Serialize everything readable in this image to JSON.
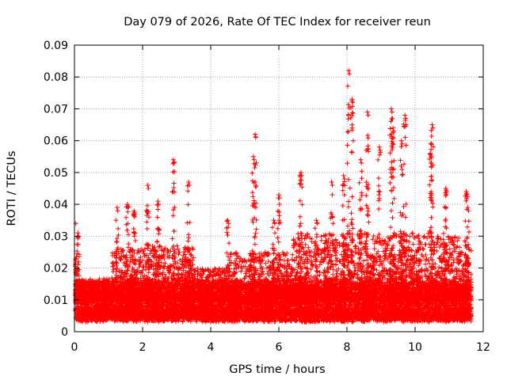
{
  "chart_data": {
    "type": "scatter",
    "title": "Day 079 of 2026, Rate Of TEC Index for receiver reun",
    "xlabel": "GPS time / hours",
    "ylabel": "ROTI / TECUs",
    "xlim": [
      0,
      12
    ],
    "ylim": [
      0,
      0.09
    ],
    "x_ticks": [
      0,
      2,
      4,
      6,
      8,
      10,
      12
    ],
    "x_tick_labels": [
      "0",
      "2",
      "4",
      "6",
      "8",
      "10",
      "12"
    ],
    "y_ticks": [
      0,
      0.01,
      0.02,
      0.03,
      0.04,
      0.05,
      0.06,
      0.07,
      0.08,
      0.09
    ],
    "y_tick_labels": [
      "0",
      "0.01",
      "0.02",
      "0.03",
      "0.04",
      "0.05",
      "0.06",
      "0.07",
      "0.08",
      "0.09"
    ],
    "grid": true,
    "marker": "+",
    "color": "#ff0000",
    "series": [
      {
        "name": "ROTI",
        "x_range": [
          0,
          11.65
        ],
        "baseline": [
          0.004,
          0.016
        ],
        "peaks": [
          {
            "x": 0.02,
            "y": 0.035
          },
          {
            "x": 0.1,
            "y": 0.031
          },
          {
            "x": 1.25,
            "y": 0.039
          },
          {
            "x": 1.55,
            "y": 0.04
          },
          {
            "x": 1.75,
            "y": 0.038
          },
          {
            "x": 2.15,
            "y": 0.046
          },
          {
            "x": 2.45,
            "y": 0.041
          },
          {
            "x": 2.9,
            "y": 0.054
          },
          {
            "x": 3.35,
            "y": 0.047
          },
          {
            "x": 4.5,
            "y": 0.035
          },
          {
            "x": 5.3,
            "y": 0.062
          },
          {
            "x": 5.25,
            "y": 0.055
          },
          {
            "x": 5.85,
            "y": 0.035
          },
          {
            "x": 6.0,
            "y": 0.043
          },
          {
            "x": 6.65,
            "y": 0.05
          },
          {
            "x": 7.1,
            "y": 0.035
          },
          {
            "x": 7.55,
            "y": 0.047
          },
          {
            "x": 7.9,
            "y": 0.049
          },
          {
            "x": 8.05,
            "y": 0.082
          },
          {
            "x": 8.15,
            "y": 0.073
          },
          {
            "x": 8.6,
            "y": 0.069
          },
          {
            "x": 8.4,
            "y": 0.054
          },
          {
            "x": 8.95,
            "y": 0.058
          },
          {
            "x": 9.3,
            "y": 0.07
          },
          {
            "x": 9.35,
            "y": 0.064
          },
          {
            "x": 9.7,
            "y": 0.068
          },
          {
            "x": 9.6,
            "y": 0.06
          },
          {
            "x": 10.5,
            "y": 0.065
          },
          {
            "x": 10.45,
            "y": 0.056
          },
          {
            "x": 10.9,
            "y": 0.045
          },
          {
            "x": 11.5,
            "y": 0.044
          },
          {
            "x": 11.55,
            "y": 0.039
          }
        ]
      }
    ]
  }
}
